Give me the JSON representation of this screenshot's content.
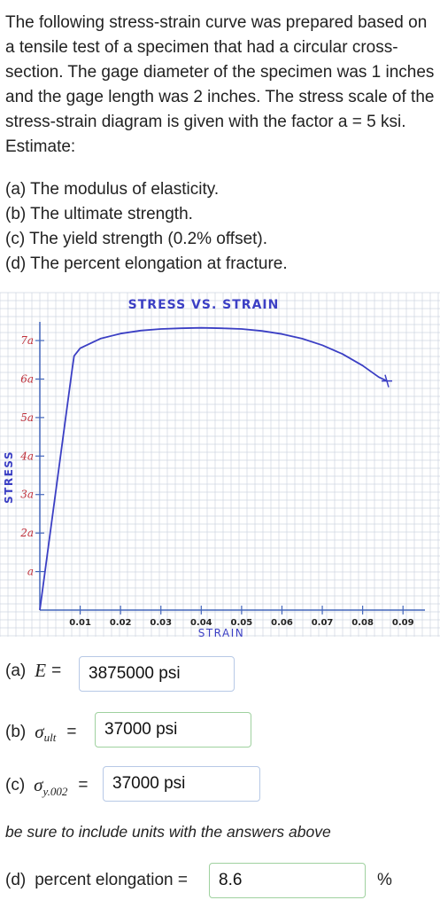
{
  "problem": {
    "statement": "The following stress-strain curve was prepared based on a tensile test of a specimen that had a circular cross-section. The gage diameter of the specimen was 1 inches and the gage length was 2 inches. The stress scale of the stress-strain diagram is given with the factor a = 5 ksi. Estimate:",
    "parts": [
      "(a) The modulus of elasticity.",
      "(b) The ultimate strength.",
      "(c) The yield strength (0.2% offset).",
      "(d) The percent elongation at fracture."
    ]
  },
  "chart_data": {
    "type": "line",
    "title": "STRESS VS. STRAIN",
    "xlabel": "STRAIN",
    "ylabel": "STRESS",
    "x_ticks": [
      "0.01",
      "0.02",
      "0.03",
      "0.04",
      "0.05",
      "0.06",
      "0.07",
      "0.08",
      "0.09"
    ],
    "y_ticks": [
      "a",
      "2a",
      "3a",
      "4a",
      "5a",
      "6a",
      "7a"
    ],
    "xlim": [
      0,
      0.095
    ],
    "ylim": [
      0,
      7.6
    ],
    "grid": true,
    "series": [
      {
        "x": [
          0,
          0.008,
          0.0085,
          0.01,
          0.015,
          0.02,
          0.025,
          0.03,
          0.035,
          0.04,
          0.045,
          0.05,
          0.055,
          0.06,
          0.065,
          0.07,
          0.075,
          0.08,
          0.084,
          0.086
        ],
        "y": [
          0,
          6.25,
          6.6,
          6.8,
          7.05,
          7.18,
          7.26,
          7.3,
          7.32,
          7.33,
          7.32,
          7.3,
          7.25,
          7.17,
          7.05,
          6.88,
          6.65,
          6.35,
          6.05,
          5.95
        ]
      }
    ],
    "fracture_marker": {
      "x": 0.086,
      "y": 5.95
    }
  },
  "answers": {
    "a": {
      "prefix": "(a)",
      "symbol": "E",
      "eq": "=",
      "value": "3875000 psi"
    },
    "b": {
      "prefix": "(b)",
      "symbol": "σ",
      "subscript": "ult",
      "eq": "=",
      "value": "37000 psi"
    },
    "c": {
      "prefix": "(c)",
      "symbol": "σ",
      "subscript": "y.002",
      "eq": "=",
      "value": "37000 psi"
    },
    "note": "be sure to include units with the answers above",
    "d": {
      "prefix": "(d)",
      "label": "percent elongation =",
      "value": "8.6",
      "unit": "%"
    }
  },
  "colors": {
    "curve": "#3b3fc4",
    "tick_labels": "#c0303a",
    "axes": "#4466bb",
    "grid": "#cfd6e0"
  }
}
